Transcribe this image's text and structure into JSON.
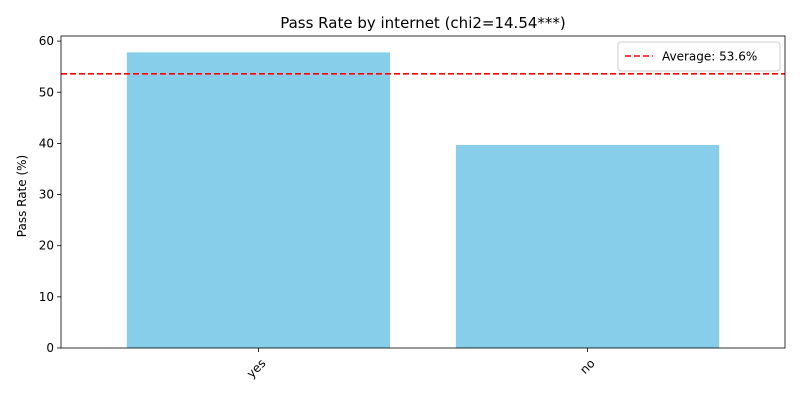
{
  "chart_data": {
    "type": "bar",
    "title": "Pass Rate by internet (chi2=14.54***)",
    "xlabel": "",
    "ylabel": "Pass Rate (%)",
    "categories": [
      "yes",
      "no"
    ],
    "values": [
      57.8,
      39.7
    ],
    "ylim": [
      0,
      61
    ],
    "yticks": [
      0,
      10,
      20,
      30,
      40,
      50,
      60
    ],
    "bar_color": "#87CEEB",
    "reference_line": {
      "value": 53.6,
      "label": "Average: 53.6%",
      "color": "#FF0000",
      "style": "dashed"
    },
    "legend_placement": "top-right",
    "grid": false
  }
}
